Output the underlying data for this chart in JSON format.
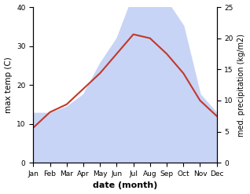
{
  "months": [
    "Jan",
    "Feb",
    "Mar",
    "Apr",
    "May",
    "Jun",
    "Jul",
    "Aug",
    "Sep",
    "Oct",
    "Nov",
    "Dec"
  ],
  "temperature": [
    9,
    13,
    15,
    19,
    23,
    28,
    33,
    32,
    28,
    23,
    16,
    12
  ],
  "precipitation": [
    8,
    8,
    9,
    11,
    16,
    20,
    27,
    25,
    26,
    22,
    11,
    8
  ],
  "temp_color": "#c0392b",
  "precip_color_fill": "#c8d4f5",
  "precip_color_edge": "#8899cc",
  "left_ylim": [
    0,
    40
  ],
  "right_ylim": [
    0,
    25
  ],
  "left_yticks": [
    0,
    10,
    20,
    30,
    40
  ],
  "right_yticks": [
    0,
    5,
    10,
    15,
    20,
    25
  ],
  "ylabel_left": "max temp (C)",
  "ylabel_right": "med. precipitation (kg/m2)",
  "xlabel": "date (month)",
  "fig_width": 3.18,
  "fig_height": 2.47,
  "dpi": 100
}
